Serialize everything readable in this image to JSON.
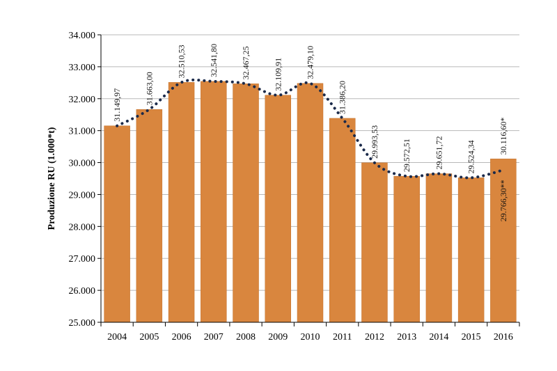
{
  "chart_data": {
    "type": "bar",
    "ylabel": "Produzione RU (1.000*t)",
    "xlabel": "",
    "ylim": [
      25000,
      34000
    ],
    "yticks": [
      25000,
      26000,
      27000,
      28000,
      29000,
      30000,
      31000,
      32000,
      33000,
      34000
    ],
    "ytick_labels": [
      "25.000",
      "26.000",
      "27.000",
      "28.000",
      "29.000",
      "30.000",
      "31.000",
      "32.000",
      "33.000",
      "34.000"
    ],
    "grid": true,
    "categories": [
      "2004",
      "2005",
      "2006",
      "2007",
      "2008",
      "2009",
      "2010",
      "2011",
      "2012",
      "2013",
      "2014",
      "2015",
      "2016"
    ],
    "values": [
      31149.97,
      31663.0,
      32510.53,
      32541.8,
      32467.25,
      32109.91,
      32479.1,
      31386.2,
      29993.53,
      29572.51,
      29651.72,
      29524.34,
      30116.6
    ],
    "value_labels": [
      "31.149,97",
      "31.663,00",
      "32.510,53",
      "32.541,80",
      "32.467,25",
      "32.109,91",
      "32.479,10",
      "31.386,20",
      "29.993,53",
      "29.572,51",
      "29.651,72",
      "29.524,34",
      "30.116,60*"
    ],
    "trend_line": {
      "style": "dotted",
      "values": [
        31149.97,
        31663.0,
        32510.53,
        32541.8,
        32467.25,
        32109.91,
        32479.1,
        31386.2,
        29993.53,
        29572.51,
        29651.72,
        29524.34,
        29766.3
      ]
    },
    "extra_label": {
      "category": "2016",
      "text": "29.766,30**"
    },
    "colors": {
      "bar": "#D9863E",
      "bar_edge": "#C4722C",
      "trend": "#1B2A4A",
      "grid": "#B8B8B8"
    }
  }
}
